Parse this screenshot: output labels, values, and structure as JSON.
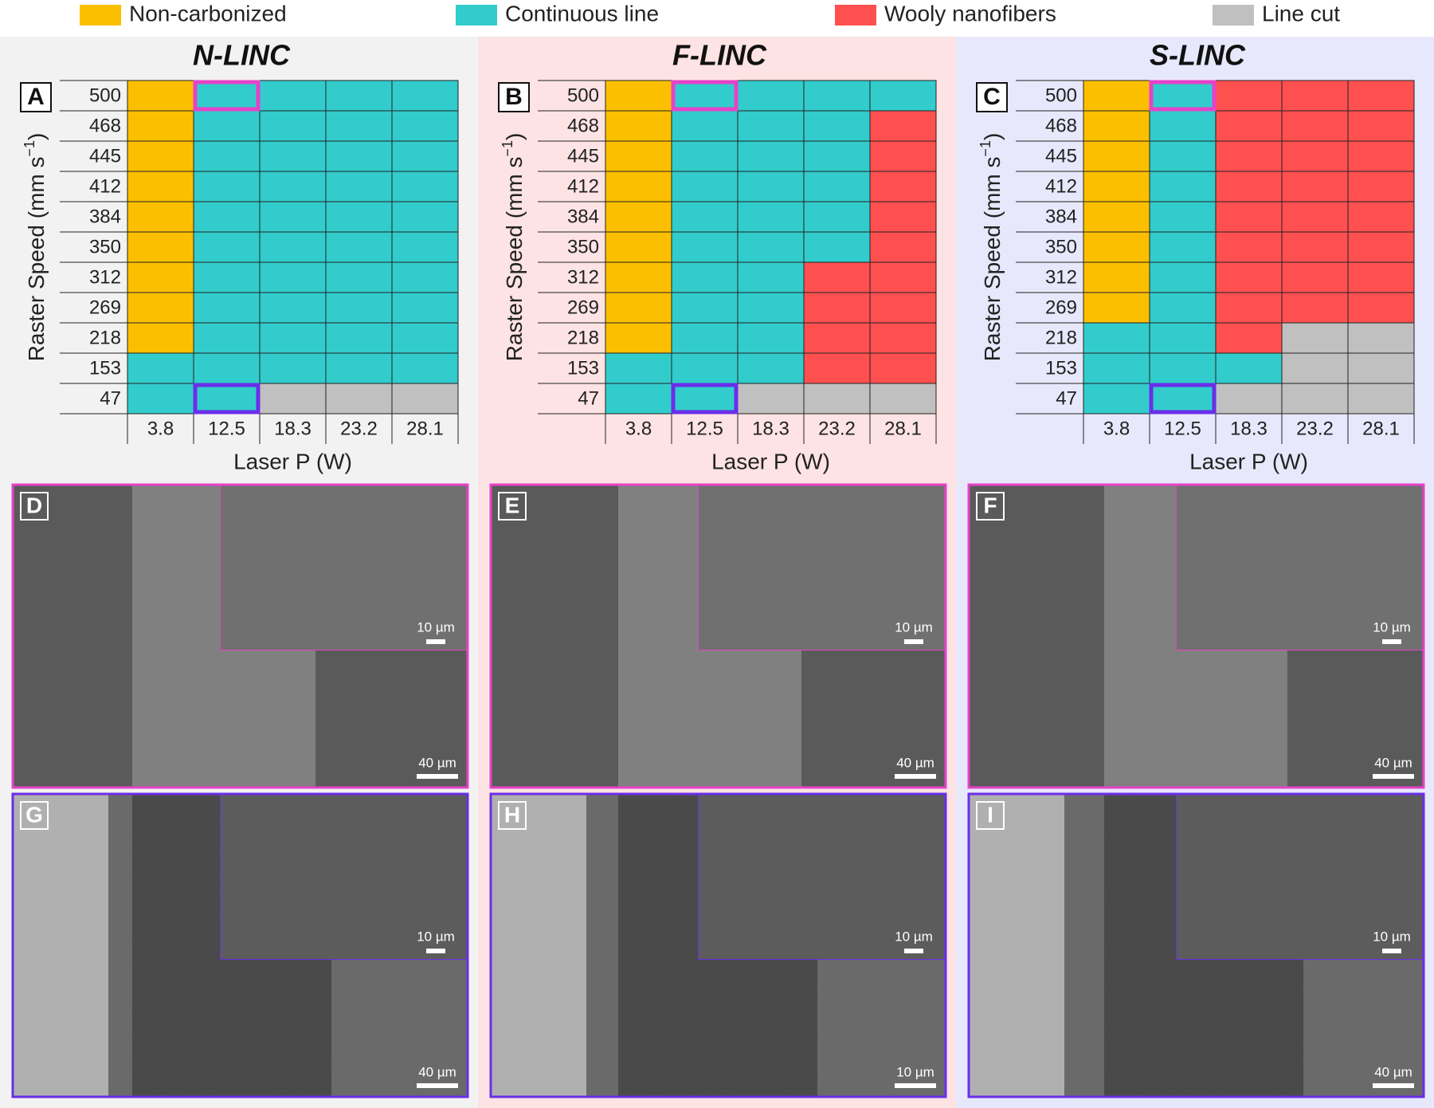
{
  "legend": [
    {
      "label": "Non-carbonized",
      "color": "#fcbf00"
    },
    {
      "label": "Continuous line",
      "color": "#33cccc"
    },
    {
      "label": "Wooly nanofibers",
      "color": "#ff5050"
    },
    {
      "label": "Line cut",
      "color": "#c0c0c0"
    }
  ],
  "highlight_colors": [
    "#e642c8",
    "#6a2ee8"
  ],
  "panels": [
    {
      "letter": "A",
      "title": "N-LINC",
      "background": "#f2f2f2",
      "y_label": "Raster Speed (mm s",
      "y_label_sup": "−1",
      "y_label_end": ")",
      "x_label": "Laser P (W)",
      "speeds": [
        "500",
        "468",
        "445",
        "412",
        "384",
        "350",
        "312",
        "269",
        "218",
        "153",
        "47"
      ],
      "powers": [
        "3.8",
        "12.5",
        "18.3",
        "23.2",
        "28.1"
      ],
      "cells": [
        [
          0,
          1,
          1,
          1,
          1
        ],
        [
          0,
          1,
          1,
          1,
          1
        ],
        [
          0,
          1,
          1,
          1,
          1
        ],
        [
          0,
          1,
          1,
          1,
          1
        ],
        [
          0,
          1,
          1,
          1,
          1
        ],
        [
          0,
          1,
          1,
          1,
          1
        ],
        [
          0,
          1,
          1,
          1,
          1
        ],
        [
          0,
          1,
          1,
          1,
          1
        ],
        [
          0,
          1,
          1,
          1,
          1
        ],
        [
          1,
          1,
          1,
          1,
          1
        ],
        [
          1,
          1,
          3,
          3,
          3
        ]
      ]
    },
    {
      "letter": "B",
      "title": "F-LINC",
      "background": "#fde3e3",
      "y_label": "Raster Speed (mm s",
      "y_label_sup": "−1",
      "y_label_end": ")",
      "x_label": "Laser P (W)",
      "speeds": [
        "500",
        "468",
        "445",
        "412",
        "384",
        "350",
        "312",
        "269",
        "218",
        "153",
        "47"
      ],
      "powers": [
        "3.8",
        "12.5",
        "18.3",
        "23.2",
        "28.1"
      ],
      "cells": [
        [
          0,
          1,
          1,
          1,
          1
        ],
        [
          0,
          1,
          1,
          1,
          2
        ],
        [
          0,
          1,
          1,
          1,
          2
        ],
        [
          0,
          1,
          1,
          1,
          2
        ],
        [
          0,
          1,
          1,
          1,
          2
        ],
        [
          0,
          1,
          1,
          1,
          2
        ],
        [
          0,
          1,
          1,
          2,
          2
        ],
        [
          0,
          1,
          1,
          2,
          2
        ],
        [
          0,
          1,
          1,
          2,
          2
        ],
        [
          1,
          1,
          1,
          2,
          2
        ],
        [
          1,
          1,
          3,
          3,
          3
        ]
      ]
    },
    {
      "letter": "C",
      "title": "S-LINC",
      "background": "#e8e8fc",
      "y_label": "Raster Speed (mm s",
      "y_label_sup": "−1",
      "y_label_end": ")",
      "x_label": "Laser P (W)",
      "speeds": [
        "500",
        "468",
        "445",
        "412",
        "384",
        "350",
        "312",
        "269",
        "218",
        "153",
        "47"
      ],
      "powers": [
        "3.8",
        "12.5",
        "18.3",
        "23.2",
        "28.1"
      ],
      "cells": [
        [
          0,
          1,
          2,
          2,
          2
        ],
        [
          0,
          1,
          2,
          2,
          2
        ],
        [
          0,
          1,
          2,
          2,
          2
        ],
        [
          0,
          1,
          2,
          2,
          2
        ],
        [
          0,
          1,
          2,
          2,
          2
        ],
        [
          0,
          1,
          2,
          2,
          2
        ],
        [
          0,
          1,
          2,
          2,
          2
        ],
        [
          0,
          1,
          2,
          2,
          2
        ],
        [
          1,
          1,
          2,
          3,
          3
        ],
        [
          1,
          1,
          1,
          3,
          3
        ],
        [
          1,
          1,
          3,
          3,
          3
        ]
      ]
    }
  ],
  "images": [
    {
      "letter": "D",
      "scale_inset": "10 µm",
      "scale_main": "40 µm"
    },
    {
      "letter": "E",
      "scale_inset": "10 µm",
      "scale_main": "40 µm"
    },
    {
      "letter": "F",
      "scale_inset": "10 µm",
      "scale_main": "40 µm"
    },
    {
      "letter": "G",
      "scale_inset": "10 µm",
      "scale_main": "40 µm"
    },
    {
      "letter": "H",
      "scale_inset": "10 µm",
      "scale_main": "10 µm"
    },
    {
      "letter": "I",
      "scale_inset": "10 µm",
      "scale_main": "40 µm"
    }
  ]
}
